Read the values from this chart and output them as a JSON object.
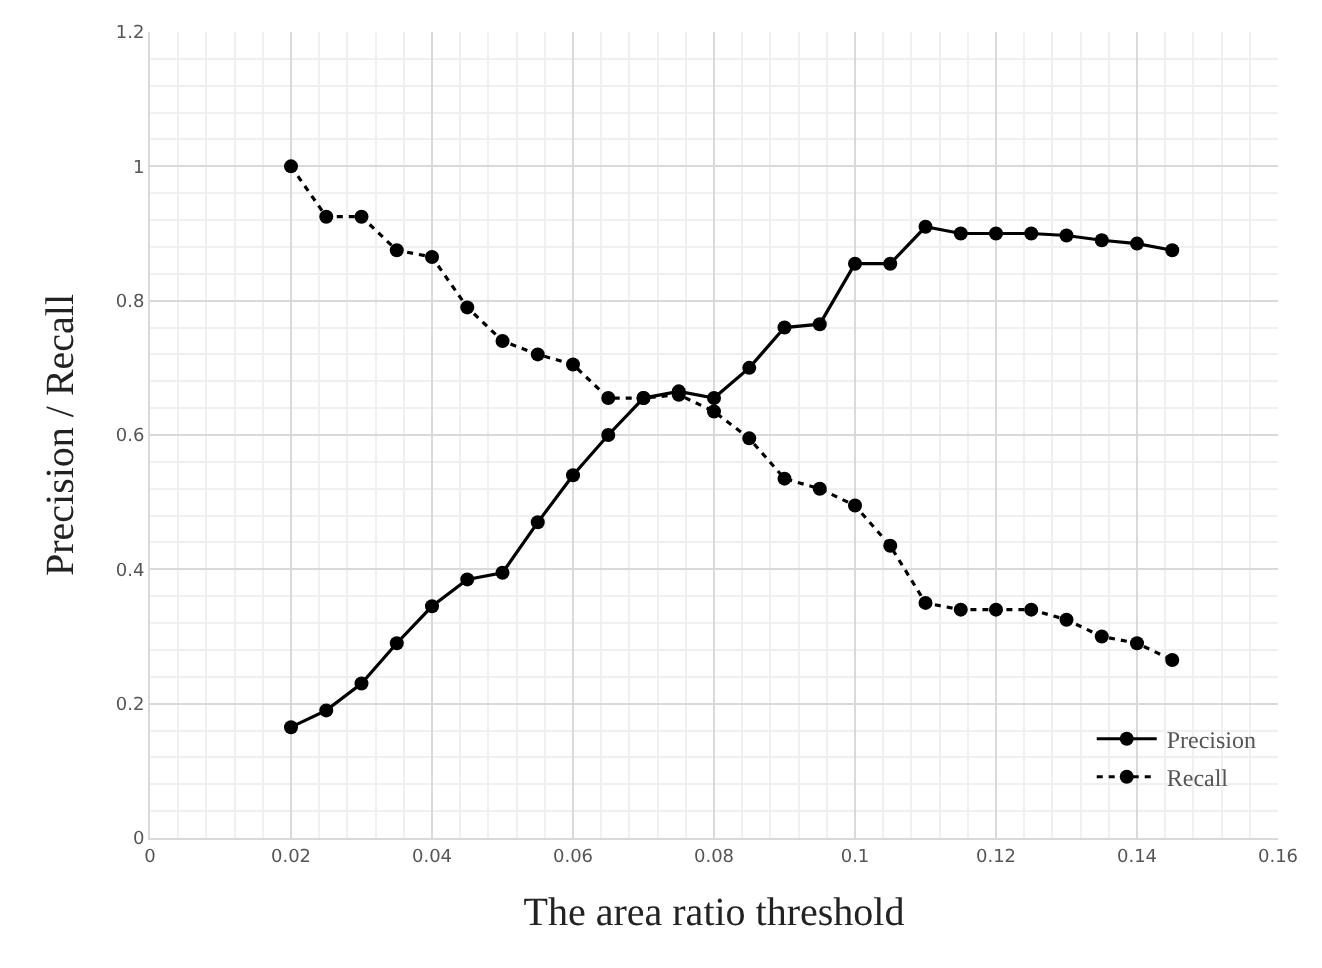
{
  "chart_data": {
    "type": "line",
    "xlabel": "The area ratio threshold",
    "ylabel": "Precision / Recall",
    "x": [
      0.02,
      0.025,
      0.03,
      0.035,
      0.04,
      0.045,
      0.05,
      0.055,
      0.06,
      0.065,
      0.07,
      0.075,
      0.08,
      0.085,
      0.09,
      0.095,
      0.1,
      0.105,
      0.11,
      0.115,
      0.12,
      0.125,
      0.13,
      0.135,
      0.14,
      0.145
    ],
    "series": [
      {
        "name": "Precision",
        "color": "#000000",
        "line_style": "solid",
        "values": [
          0.165,
          0.19,
          0.23,
          0.29,
          0.345,
          0.385,
          0.395,
          0.47,
          0.54,
          0.6,
          0.655,
          0.665,
          0.655,
          0.7,
          0.76,
          0.765,
          0.855,
          0.855,
          0.91,
          0.9,
          0.9,
          0.9,
          0.897,
          0.89,
          0.885,
          0.875
        ]
      },
      {
        "name": "Recall",
        "color": "#000000",
        "line_style": "dotted",
        "values": [
          1,
          0.925,
          0.925,
          0.875,
          0.865,
          0.79,
          0.74,
          0.72,
          0.705,
          0.655,
          0.655,
          0.66,
          0.635,
          0.595,
          0.535,
          0.52,
          0.495,
          0.435,
          0.35,
          0.34,
          0.34,
          0.34,
          0.325,
          0.3,
          0.29,
          0.265
        ]
      }
    ],
    "marker": "circle",
    "xlim": [
      0,
      0.16
    ],
    "xticks": [
      0,
      0.02,
      0.04,
      0.06,
      0.08,
      0.1,
      0.12,
      0.14,
      0.16
    ],
    "ylim": [
      0,
      1.2
    ],
    "yticks": [
      0,
      0.2,
      0.4,
      0.6,
      0.8,
      1,
      1.2
    ],
    "grid": true,
    "legend": "bottom right"
  }
}
